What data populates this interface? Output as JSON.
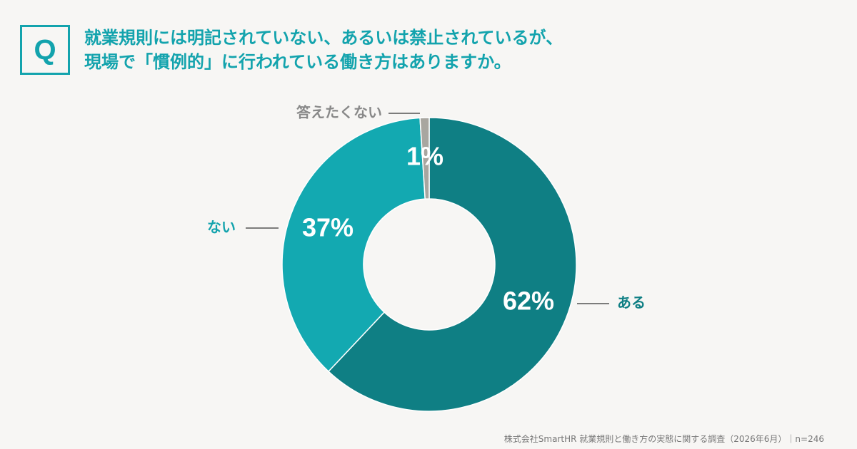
{
  "badge": "Q",
  "question": {
    "line1": "就業規則には明記されていない、あるいは禁止されているが、",
    "line2": "現場で「慣例的」に行われている働き方はありますか。"
  },
  "chart_data": {
    "type": "pie",
    "donut": true,
    "title": "",
    "slices": [
      {
        "label": "ある",
        "value": 62,
        "value_label": "62%",
        "color": "#0f7f84",
        "label_color": "#0f7f84"
      },
      {
        "label": "ない",
        "value": 37,
        "value_label": "37%",
        "color": "#13a9b1",
        "label_color": "#13a3ad"
      },
      {
        "label": "答えたくない",
        "value": 1,
        "value_label": "1%",
        "color": "#a8a6a0",
        "label_color": "#888888"
      }
    ]
  },
  "footer": {
    "credit": "株式会社SmartHR 就業規則と働き方の実態に関する調査（2026年6月）｜n=246"
  }
}
